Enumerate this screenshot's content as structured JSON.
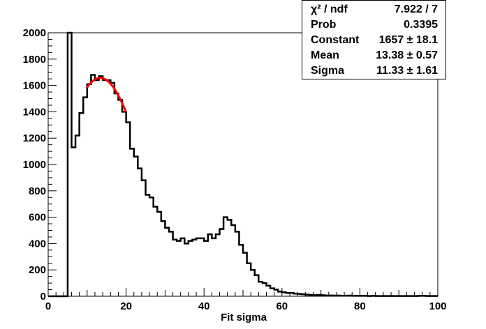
{
  "chart_data": {
    "type": "histogram",
    "xlabel": "Fit sigma",
    "ylabel": "",
    "xlim": [
      0,
      100
    ],
    "ylim": [
      0,
      2000
    ],
    "x_ticks": [
      0,
      20,
      40,
      60,
      80,
      100
    ],
    "y_ticks": [
      0,
      200,
      400,
      600,
      800,
      1000,
      1200,
      1400,
      1600,
      1800,
      2000
    ],
    "bin_width": 1,
    "bin_start": 5,
    "counts": [
      2000,
      1130,
      1220,
      1390,
      1510,
      1610,
      1680,
      1640,
      1670,
      1640,
      1640,
      1620,
      1540,
      1490,
      1400,
      1320,
      1120,
      1060,
      970,
      880,
      770,
      750,
      680,
      640,
      570,
      520,
      490,
      430,
      420,
      440,
      400,
      420,
      430,
      440,
      440,
      420,
      470,
      440,
      470,
      510,
      600,
      580,
      540,
      490,
      390,
      330,
      250,
      200,
      160,
      110,
      100,
      80,
      60,
      50,
      35,
      30,
      25,
      25,
      20,
      18,
      15,
      12,
      10,
      8,
      10,
      8,
      6,
      6,
      5,
      5,
      4,
      4,
      5,
      3,
      3,
      3,
      3,
      2,
      3,
      2,
      2,
      2,
      2,
      2,
      2,
      2,
      2,
      2,
      2,
      2,
      3,
      3,
      2,
      2,
      2
    ],
    "fit": {
      "function": "gaus",
      "color": "#ff0000",
      "range": [
        10,
        20
      ],
      "constant": 1657,
      "mean": 13.38,
      "sigma": 11.33
    },
    "stats": [
      {
        "label": "χ² / ndf",
        "value": "7.922 / 7"
      },
      {
        "label": "Prob",
        "value": "0.3395"
      },
      {
        "label": "Constant",
        "value": "1657 ± 18.1"
      },
      {
        "label": "Mean",
        "value": "13.38 ± 0.57"
      },
      {
        "label": "Sigma",
        "value": "11.33 ± 1.61"
      }
    ]
  }
}
